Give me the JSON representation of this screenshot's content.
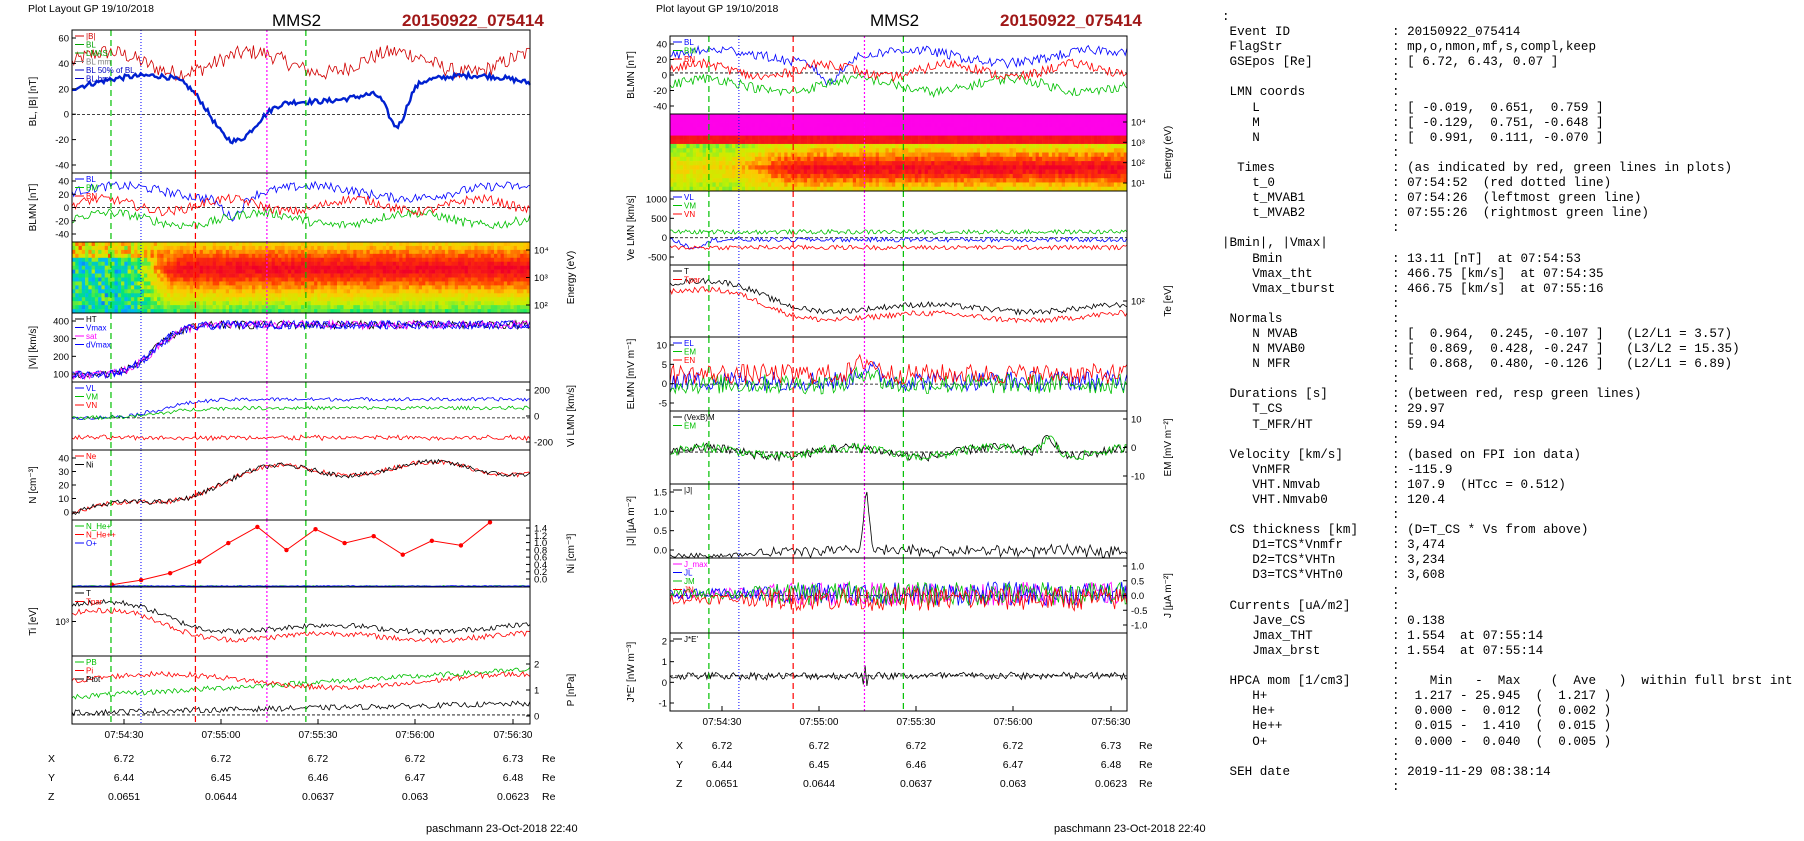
{
  "plots": [
    {
      "header": "Plot Layout GP 19/10/2018",
      "spacecraft": "MMS2",
      "event": "20150922_075414",
      "footer": "paschmann 23-Oct-2018 22:40",
      "time_ticks": [
        "07:54:30",
        "07:55:00",
        "07:55:30",
        "07:56:00",
        "07:56:30"
      ],
      "time_range": [
        "07:54:14",
        "07:56:35"
      ],
      "ephemeris": {
        "labels": [
          "X",
          "Y",
          "Z"
        ],
        "unit": "Re",
        "X": [
          "6.72",
          "6.72",
          "6.72",
          "6.72",
          "6.73"
        ],
        "Y": [
          "6.44",
          "6.45",
          "6.46",
          "6.47",
          "6.48"
        ],
        "Z": [
          "0.0651",
          "0.0644",
          "0.0637",
          "0.063",
          "0.0623"
        ]
      },
      "panels": [
        {
          "ylabel": "BL, |B| [nT]",
          "side": "left",
          "ticks": [
            "60",
            "40",
            "20",
            "0",
            "-20",
            "-40"
          ],
          "ylim": [
            -45,
            65
          ],
          "legend": [
            "|B|",
            "BL",
            "LMAS",
            "BL mm",
            "BL 50% of BL",
            "BL brst"
          ],
          "legend_colors": [
            "#d00000",
            "#00a000",
            "#00a000",
            "#808080",
            "#0000c0",
            "#0000c0"
          ]
        },
        {
          "ylabel": "BLMN [nT]",
          "side": "left",
          "ticks": [
            "40",
            "20",
            "0",
            "-20",
            "-40"
          ],
          "ylim": [
            -45,
            45
          ],
          "legend": [
            "BL",
            "BM",
            "BN"
          ],
          "legend_colors": [
            "#0000ff",
            "#00c000",
            "#ff0000"
          ]
        },
        {
          "ylabel": "Energy (eV)",
          "side": "right",
          "ticks": [
            "10⁴",
            "10³",
            "10²"
          ],
          "ylim": [
            1.5,
            4.3
          ],
          "legend": [],
          "legend_colors": []
        },
        {
          "ylabel": "|Vi| [km/s]",
          "side": "left",
          "ticks": [
            "400",
            "300",
            "200",
            "100"
          ],
          "ylim": [
            50,
            460
          ],
          "legend": [
            "HT",
            "Vmax",
            "sat",
            "dVmax"
          ],
          "legend_colors": [
            "#000000",
            "#0000ff",
            "#ff00ff",
            "#0000ff"
          ]
        },
        {
          "ylabel": "Vi LMN [km/s]",
          "side": "right",
          "ticks": [
            "200",
            "0",
            "-200"
          ],
          "ylim": [
            -260,
            290
          ],
          "legend": [
            "VL",
            "VM",
            "VN"
          ],
          "legend_colors": [
            "#0000ff",
            "#00c000",
            "#ff0000"
          ]
        },
        {
          "ylabel": "N [cm⁻³]",
          "side": "left",
          "ticks": [
            "40",
            "30",
            "20",
            "10",
            "0"
          ],
          "ylim": [
            0,
            42
          ],
          "legend": [
            "Ne",
            "Ni"
          ],
          "legend_colors": [
            "#ff0000",
            "#000000"
          ]
        },
        {
          "ylabel": "Ni [cm⁻³]",
          "side": "right",
          "ticks": [
            "1.4",
            "1.2",
            "1.0",
            "0.8",
            "0.6",
            "0.4",
            "0.2",
            "0.0"
          ],
          "ylim": [
            0,
            1.45
          ],
          "legend": [
            "N_He+",
            "N_He++",
            "O+"
          ],
          "legend_colors": [
            "#00c000",
            "#ff0000",
            "#0000ff"
          ]
        },
        {
          "ylabel": "Ti [eV]",
          "side": "left",
          "ticks": [
            "10³"
          ],
          "ylim": [
            0,
            1
          ],
          "legend": [
            "T",
            "Tpar"
          ],
          "legend_colors": [
            "#000000",
            "#ff0000"
          ]
        },
        {
          "ylabel": "P [nPa]",
          "side": "right",
          "ticks": [
            "2",
            "1",
            "0"
          ],
          "ylim": [
            -0.4,
            2.6
          ],
          "legend": [
            "PB",
            "Pi",
            "Ptot"
          ],
          "legend_colors": [
            "#00c000",
            "#ff0000",
            "#000000"
          ]
        }
      ]
    },
    {
      "header": "Plot layout GP 19/10/2018",
      "spacecraft": "MMS2",
      "event": "20150922_075414",
      "footer": "paschmann 23-Oct-2018 22:40",
      "time_ticks": [
        "07:54:30",
        "07:55:00",
        "07:55:30",
        "07:56:00",
        "07:56:30"
      ],
      "time_range": [
        "07:54:14",
        "07:56:35"
      ],
      "ephemeris": {
        "labels": [
          "X",
          "Y",
          "Z"
        ],
        "unit": "Re",
        "X": [
          "6.72",
          "6.72",
          "6.72",
          "6.72",
          "6.73"
        ],
        "Y": [
          "6.44",
          "6.45",
          "6.46",
          "6.47",
          "6.48"
        ],
        "Z": [
          "0.0651",
          "0.0644",
          "0.0637",
          "0.063",
          "0.0623"
        ]
      },
      "panels": [
        {
          "ylabel": "BLMN [nT]",
          "side": "left",
          "ticks": [
            "40",
            "20",
            "0",
            "-20",
            "-40"
          ],
          "ylim": [
            -50,
            45
          ],
          "legend": [
            "BL",
            "BM",
            "BN"
          ],
          "legend_colors": [
            "#0000ff",
            "#00c000",
            "#ff0000"
          ]
        },
        {
          "ylabel": "Energy (eV)",
          "side": "right",
          "ticks": [
            "10⁴",
            "10³",
            "10²",
            "10¹"
          ],
          "ylim": [
            0.9,
            4.5
          ],
          "legend": [],
          "legend_colors": []
        },
        {
          "ylabel": "Ve LMN [km/s]",
          "side": "left",
          "ticks": [
            "1000",
            "500",
            "0",
            "-500"
          ],
          "ylim": [
            -700,
            1200
          ],
          "legend": [
            "VL",
            "VM",
            "VN"
          ],
          "legend_colors": [
            "#0000ff",
            "#00c000",
            "#ff0000"
          ]
        },
        {
          "ylabel": "Te [eV]",
          "side": "right",
          "ticks": [
            "10²"
          ],
          "ylim": [
            0,
            1
          ],
          "legend": [
            "T",
            "Tpar"
          ],
          "legend_colors": [
            "#000000",
            "#ff0000"
          ]
        },
        {
          "ylabel": "ELMN [mV m⁻¹]",
          "side": "left",
          "ticks": [
            "10",
            "5",
            "0",
            "-5"
          ],
          "ylim": [
            -8,
            14
          ],
          "legend": [
            "EL",
            "EM",
            "EN"
          ],
          "legend_colors": [
            "#0000ff",
            "#00c000",
            "#ff0000"
          ]
        },
        {
          "ylabel": "EM [mV m⁻²]",
          "side": "right",
          "ticks": [
            "10",
            "0",
            "-10"
          ],
          "ylim": [
            -14,
            18
          ],
          "legend": [
            "(VexB)M",
            "EM"
          ],
          "legend_colors": [
            "#000000",
            "#00c000"
          ]
        },
        {
          "ylabel": "|J| [μA m⁻²]",
          "side": "left",
          "ticks": [
            "1.5",
            "1.0",
            "0.5",
            "0.0"
          ],
          "ylim": [
            0,
            1.55
          ],
          "legend": [
            "|J|"
          ],
          "legend_colors": [
            "#000000"
          ]
        },
        {
          "ylabel": "J [μA m⁻²]",
          "side": "right",
          "ticks": [
            "1.0",
            "0.5",
            "0.0",
            "-0.5",
            "-1.0"
          ],
          "ylim": [
            -1.1,
            1.1
          ],
          "legend": [
            "J_max",
            "JL",
            "JM",
            "JN"
          ],
          "legend_colors": [
            "#ff00ff",
            "#0000ff",
            "#00c000",
            "#ff0000"
          ]
        },
        {
          "ylabel": "J*E' [nW m⁻³]",
          "side": "left",
          "ticks": [
            "2",
            "1",
            "0",
            "-1"
          ],
          "ylim": [
            -1.8,
            2.2
          ],
          "legend": [
            "J*E'"
          ],
          "legend_colors": [
            "#000000"
          ]
        }
      ]
    }
  ],
  "info": [
    {
      "k": ":",
      "v": ""
    },
    {
      "k": " Event ID",
      "v": ": 20150922_075414"
    },
    {
      "k": " FlagStr",
      "v": ": mp,o,nmon,mf,s,compl,keep"
    },
    {
      "k": " GSEpos [Re]",
      "v": ": [ 6.72, 6.43, 0.07 ]"
    },
    {
      "k": "",
      "v": ":"
    },
    {
      "k": " LMN coords",
      "v": ":"
    },
    {
      "k": "    L",
      "v": ": [ -0.019,  0.651,  0.759 ]"
    },
    {
      "k": "    M",
      "v": ": [ -0.129,  0.751, -0.648 ]"
    },
    {
      "k": "    N",
      "v": ": [  0.991,  0.111, -0.070 ]"
    },
    {
      "k": "",
      "v": ":"
    },
    {
      "k": "  Times",
      "v": ": (as indicated by red, green lines in plots)"
    },
    {
      "k": "    t_0",
      "v": ": 07:54:52  (red dotted line)"
    },
    {
      "k": "    t_MVAB1",
      "v": ": 07:54:26  (leftmost green line)"
    },
    {
      "k": "    t_MVAB2",
      "v": ": 07:55:26  (rightmost green line)"
    },
    {
      "k": "",
      "v": ":"
    },
    {
      "k": "|Bmin|, |Vmax|",
      "v": ""
    },
    {
      "k": "    Bmin",
      "v": ": 13.11 [nT]  at 07:54:53"
    },
    {
      "k": "    Vmax_tht",
      "v": ": 466.75 [km/s]  at 07:54:35"
    },
    {
      "k": "    Vmax_tburst",
      "v": ": 466.75 [km/s]  at 07:55:16"
    },
    {
      "k": "",
      "v": ":"
    },
    {
      "k": " Normals",
      "v": ":"
    },
    {
      "k": "    N MVAB",
      "v": ": [  0.964,  0.245, -0.107 ]   (L2/L1 = 3.57)"
    },
    {
      "k": "    N MVAB0",
      "v": ": [  0.869,  0.428, -0.247 ]   (L3/L2 = 15.35)"
    },
    {
      "k": "    N MFR",
      "v": ": [  0.868,  0.480, -0.126 ]   (L2/L1 = 6.89)"
    },
    {
      "k": "",
      "v": ":"
    },
    {
      "k": " Durations [s]",
      "v": ": (between red, resp green lines)"
    },
    {
      "k": "    T_CS",
      "v": ": 29.97"
    },
    {
      "k": "    T_MFR/HT",
      "v": ": 59.94"
    },
    {
      "k": "",
      "v": ":"
    },
    {
      "k": " Velocity [km/s]",
      "v": ": (based on FPI ion data)"
    },
    {
      "k": "    VnMFR",
      "v": ": -115.9"
    },
    {
      "k": "    VHT.Nmvab",
      "v": ": 107.9  (HTcc = 0.512)"
    },
    {
      "k": "    VHT.Nmvab0",
      "v": ": 120.4"
    },
    {
      "k": "",
      "v": ":"
    },
    {
      "k": " CS thickness [km]",
      "v": ": (D=T_CS * Vs from above)"
    },
    {
      "k": "    D1=TCS*Vnmfr",
      "v": ": 3,474"
    },
    {
      "k": "    D2=TCS*VHTn",
      "v": ": 3,234"
    },
    {
      "k": "    D3=TCS*VHTn0",
      "v": ": 3,608"
    },
    {
      "k": "",
      "v": ":"
    },
    {
      "k": " Currents [uA/m2]",
      "v": ":"
    },
    {
      "k": "    Jave_CS",
      "v": ": 0.138"
    },
    {
      "k": "    Jmax_THT",
      "v": ": 1.554  at 07:55:14"
    },
    {
      "k": "    Jmax_brst",
      "v": ": 1.554  at 07:55:14"
    },
    {
      "k": "",
      "v": ":"
    },
    {
      "k": " HPCA mom [1/cm3]",
      "v": ":    Min   -  Max    (  Ave   )  within full brst int"
    },
    {
      "k": "    H+",
      "v": ":  1.217 - 25.945  (  1.217 )"
    },
    {
      "k": "    He+",
      "v": ":  0.000 -  0.012  (  0.002 )"
    },
    {
      "k": "    He++",
      "v": ":  0.015 -  1.410  (  0.015 )"
    },
    {
      "k": "    O+",
      "v": ":  0.000 -  0.040  (  0.005 )"
    },
    {
      "k": "",
      "v": ":"
    },
    {
      "k": " SEH date",
      "v": ": 2019-11-29 08:38:14"
    },
    {
      "k": "",
      "v": ":"
    }
  ],
  "colors": {
    "event": "#a01818",
    "red": "#ff0000",
    "green": "#00c000",
    "blue": "#0000ff",
    "magenta": "#ff00ff",
    "black": "#000000"
  }
}
